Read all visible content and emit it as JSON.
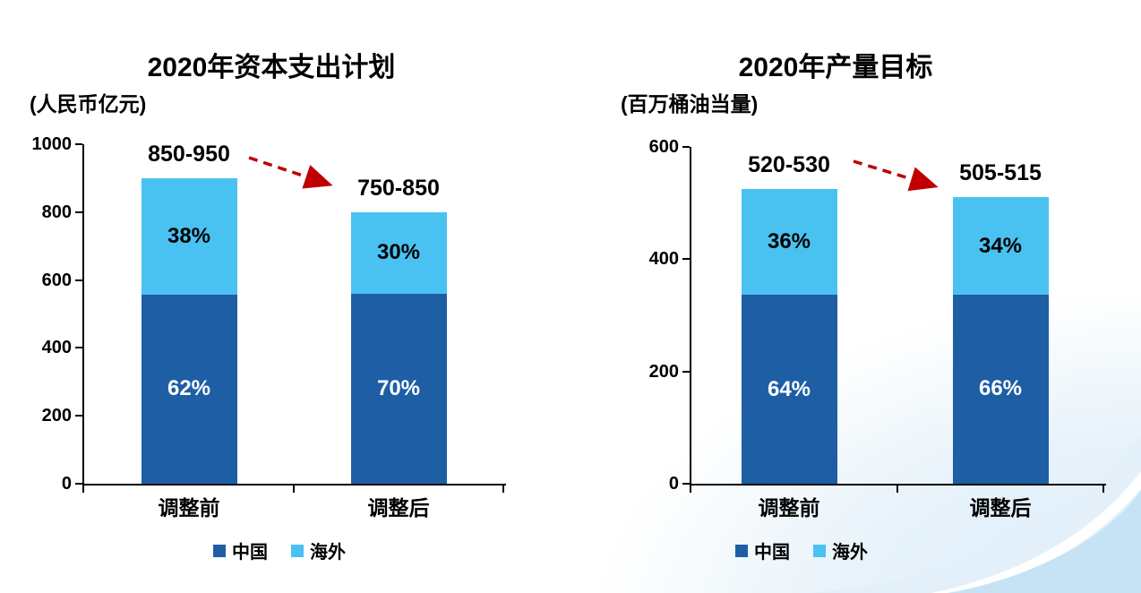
{
  "page": {
    "background_color": "#FFFFFF",
    "decoration": {
      "corner_tint": "#E7F2FA",
      "wave_pale_blue": "#E3F0F9",
      "wave_stripe_white": "#FFFFFF",
      "wave_light_blue": "#C6E3F5"
    },
    "axis_color": "#000000"
  },
  "chart_data": [
    {
      "type": "bar",
      "stacked": true,
      "title": "2020年资本支出计划",
      "unit": "(人民币亿元)",
      "categories": [
        "调整前",
        "调整后"
      ],
      "series": [
        {
          "name": "中国",
          "color": "#1E5EA5",
          "label_color": "#FFFFFF",
          "values": [
            558,
            560
          ],
          "pct_labels": [
            "62%",
            "70%"
          ]
        },
        {
          "name": "海外",
          "color": "#4AC2F1",
          "label_color": "#000000",
          "values": [
            342,
            240
          ],
          "pct_labels": [
            "38%",
            "30%"
          ]
        }
      ],
      "totals": [
        900,
        800
      ],
      "total_labels": [
        "850-950",
        "750-850"
      ],
      "ylim": [
        0,
        1000
      ],
      "yticks": [
        0,
        200,
        400,
        600,
        800,
        1000
      ],
      "xlabel": "",
      "ylabel": "",
      "grid": false,
      "legend_position": "bottom",
      "annotation_arrow": {
        "color": "#C00000",
        "style": "dashed",
        "meaning": "decline from 850-950 to 750-850"
      }
    },
    {
      "type": "bar",
      "stacked": true,
      "title": "2020年产量目标",
      "unit": "(百万桶油当量)",
      "categories": [
        "调整前",
        "调整后"
      ],
      "series": [
        {
          "name": "中国",
          "color": "#1E5EA5",
          "label_color": "#FFFFFF",
          "values": [
            336,
            337
          ],
          "pct_labels": [
            "64%",
            "66%"
          ]
        },
        {
          "name": "海外",
          "color": "#4AC2F1",
          "label_color": "#000000",
          "values": [
            189,
            173
          ],
          "pct_labels": [
            "36%",
            "34%"
          ]
        }
      ],
      "totals": [
        525,
        510
      ],
      "total_labels": [
        "520-530",
        "505-515"
      ],
      "ylim": [
        0,
        600
      ],
      "yticks": [
        0,
        200,
        400,
        600
      ],
      "xlabel": "",
      "ylabel": "",
      "grid": false,
      "legend_position": "bottom",
      "annotation_arrow": {
        "color": "#C00000",
        "style": "dashed",
        "meaning": "decline from 520-530 to 505-515"
      }
    }
  ]
}
